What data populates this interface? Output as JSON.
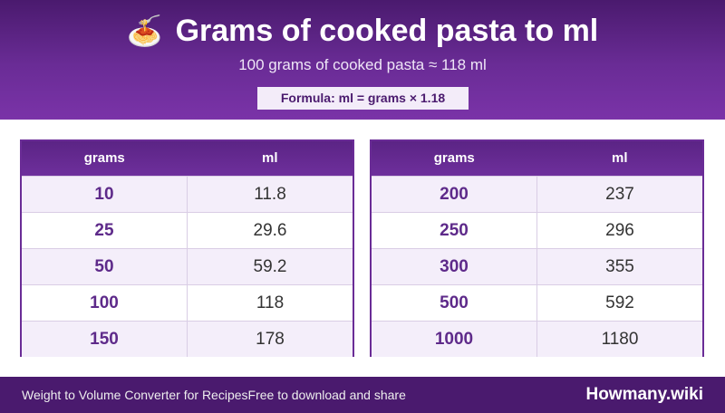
{
  "header": {
    "icon": "🍝",
    "title": "Grams of cooked pasta to ml",
    "subtitle": "100 grams of cooked pasta ≈ 118 ml",
    "formula": "Formula: ml = grams × 1.18"
  },
  "tables": [
    {
      "col_grams": "grams",
      "col_ml": "ml",
      "rows": [
        {
          "grams": "10",
          "ml": "11.8"
        },
        {
          "grams": "25",
          "ml": "29.6"
        },
        {
          "grams": "50",
          "ml": "59.2"
        },
        {
          "grams": "100",
          "ml": "118"
        },
        {
          "grams": "150",
          "ml": "178"
        }
      ]
    },
    {
      "col_grams": "grams",
      "col_ml": "ml",
      "rows": [
        {
          "grams": "200",
          "ml": "237"
        },
        {
          "grams": "250",
          "ml": "296"
        },
        {
          "grams": "300",
          "ml": "355"
        },
        {
          "grams": "500",
          "ml": "592"
        },
        {
          "grams": "1000",
          "ml": "1180"
        }
      ]
    }
  ],
  "footer": {
    "left_text_1": "Weight to Volume Converter for Recipes",
    "left_text_2": "Free to download and share",
    "brand": "Howmany.wiki"
  }
}
